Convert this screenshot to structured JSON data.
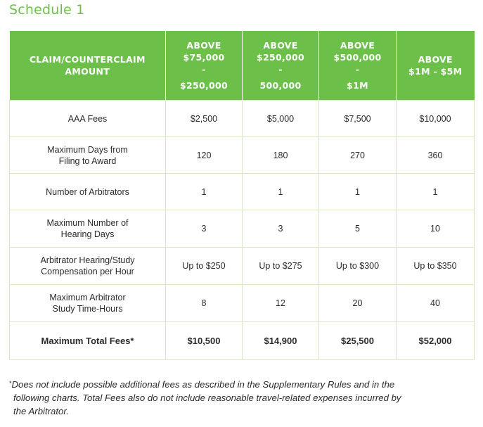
{
  "title": "Schedule 1",
  "table": {
    "header_label": "CLAIM/COUNTERCLAIM AMOUNT",
    "header_label_lines": [
      "CLAIM/COUNTERCLAIM",
      "AMOUNT"
    ],
    "columns": [
      {
        "lines": [
          "ABOVE",
          "$75,000",
          "-",
          "$250,000"
        ]
      },
      {
        "lines": [
          "ABOVE",
          "$250,000",
          "-",
          "500,000"
        ]
      },
      {
        "lines": [
          "ABOVE",
          "$500,000",
          "-",
          "$1M"
        ]
      },
      {
        "lines": [
          "ABOVE",
          "$1M - $5M"
        ]
      }
    ],
    "rows": [
      {
        "label_lines": [
          "AAA Fees"
        ],
        "values": [
          "$2,500",
          "$5,000",
          "$7,500",
          "$10,000"
        ]
      },
      {
        "label_lines": [
          "Maximum Days from",
          "Filing to Award"
        ],
        "values": [
          "120",
          "180",
          "270",
          "360"
        ]
      },
      {
        "label_lines": [
          "Number of Arbitrators"
        ],
        "values": [
          "1",
          "1",
          "1",
          "1"
        ]
      },
      {
        "label_lines": [
          "Maximum Number of",
          "Hearing Days"
        ],
        "values": [
          "3",
          "3",
          "5",
          "10"
        ]
      },
      {
        "label_lines": [
          "Arbitrator Hearing/Study",
          "Compensation per Hour"
        ],
        "values": [
          "Up to $250",
          "Up to $275",
          "Up to $300",
          "Up to $350"
        ]
      },
      {
        "label_lines": [
          "Maximum Arbitrator",
          "Study Time-Hours"
        ],
        "values": [
          "8",
          "12",
          "20",
          "40"
        ]
      },
      {
        "label_lines": [
          "Maximum Total Fees*"
        ],
        "values": [
          "$10,500",
          "$14,900",
          "$25,500",
          "$52,000"
        ]
      }
    ]
  },
  "footnote": {
    "asterisk": "*",
    "lines": [
      "Does not include possible additional fees as described in the Supplementary Rules and in the",
      "following charts. Total Fees also do not include reasonable travel-related expenses incurred by",
      "the Arbitrator."
    ]
  },
  "colors": {
    "accent_green": "#6cc04a",
    "border_green": "#d4e9c4",
    "text": "#2b2b2b"
  }
}
